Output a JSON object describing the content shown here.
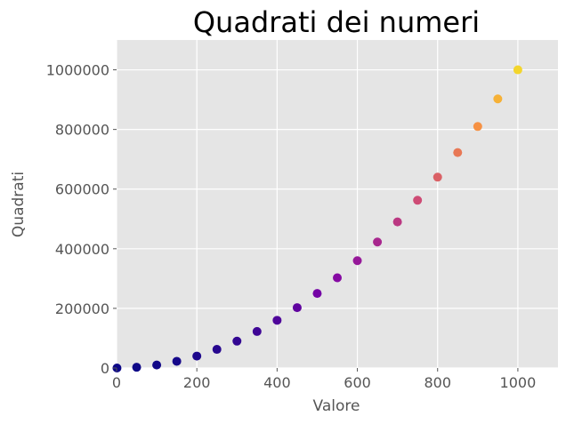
{
  "chart_data": {
    "type": "scatter",
    "title": "Quadrati dei numeri",
    "xlabel": "Valore",
    "ylabel": "Quadrati",
    "xlim": [
      0,
      1100
    ],
    "ylim": [
      0,
      1100000
    ],
    "x_ticks": [
      "0",
      "200",
      "400",
      "600",
      "800",
      "1000"
    ],
    "y_ticks": [
      "0",
      "200000",
      "400000",
      "600000",
      "800000",
      "1000000"
    ],
    "x_tick_values": [
      0,
      200,
      400,
      600,
      800,
      1000
    ],
    "y_tick_values": [
      0,
      200000,
      400000,
      600000,
      800000,
      1000000
    ],
    "grid": true,
    "series": [
      {
        "x": [
          1,
          50,
          100,
          150,
          200,
          250,
          300,
          350,
          400,
          450,
          500,
          550,
          600,
          650,
          700,
          750,
          800,
          850,
          900,
          950,
          1000
        ],
        "y": [
          1,
          2500,
          10000,
          22500,
          40000,
          62500,
          90000,
          122500,
          160000,
          202500,
          250000,
          302500,
          360000,
          422500,
          490000,
          562500,
          640000,
          722500,
          810000,
          902500,
          1000000
        ],
        "colormap": "plasma",
        "colors": [
          "#0d0887",
          "#7e03a8",
          "#cc4778",
          "#f89540",
          "#f0f921"
        ]
      }
    ]
  }
}
